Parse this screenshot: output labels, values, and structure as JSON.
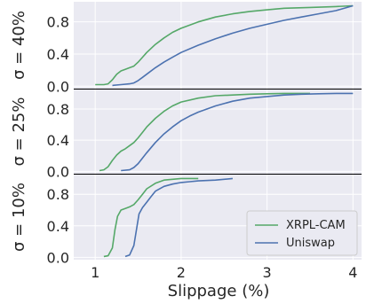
{
  "chart_data": {
    "type": "line",
    "xlabel": "Slippage (%)",
    "x_ticks": [
      "1",
      "2",
      "3",
      "4"
    ],
    "y_ticks": [
      "0.0",
      "0.4",
      "0.8"
    ],
    "xlim": [
      0.75,
      4.1
    ],
    "ylim": [
      -0.03,
      1.05
    ],
    "grid": true,
    "legend": {
      "placement": "lower-right",
      "panel": 3
    },
    "colors": {
      "xrpl": "#55a868",
      "uniswap": "#4c72b0",
      "panel_bg": "#eaeaf2",
      "grid": "#ffffff"
    },
    "panels": [
      {
        "ylabel": "σ = 40%",
        "series": [
          {
            "name": "XRPL-CAM",
            "x": [
              1.0,
              1.1,
              1.15,
              1.2,
              1.25,
              1.3,
              1.35,
              1.4,
              1.45,
              1.5,
              1.55,
              1.6,
              1.7,
              1.8,
              1.9,
              2.0,
              2.2,
              2.4,
              2.6,
              2.8,
              3.0,
              3.2,
              3.5,
              3.8,
              4.0
            ],
            "y": [
              0.02,
              0.02,
              0.03,
              0.08,
              0.15,
              0.19,
              0.21,
              0.23,
              0.25,
              0.3,
              0.36,
              0.42,
              0.52,
              0.6,
              0.67,
              0.72,
              0.8,
              0.86,
              0.9,
              0.93,
              0.95,
              0.97,
              0.98,
              0.99,
              1.0
            ]
          },
          {
            "name": "Uniswap",
            "x": [
              1.2,
              1.3,
              1.4,
              1.45,
              1.5,
              1.55,
              1.6,
              1.7,
              1.8,
              1.9,
              2.0,
              2.2,
              2.4,
              2.6,
              2.8,
              3.0,
              3.2,
              3.4,
              3.6,
              3.8,
              4.0
            ],
            "y": [
              0.01,
              0.02,
              0.03,
              0.04,
              0.07,
              0.11,
              0.15,
              0.23,
              0.3,
              0.36,
              0.42,
              0.51,
              0.59,
              0.66,
              0.72,
              0.77,
              0.82,
              0.86,
              0.9,
              0.94,
              1.0
            ]
          }
        ]
      },
      {
        "ylabel": "σ = 25%",
        "series": [
          {
            "name": "XRPL-CAM",
            "x": [
              1.05,
              1.1,
              1.15,
              1.2,
              1.25,
              1.3,
              1.35,
              1.4,
              1.45,
              1.5,
              1.55,
              1.6,
              1.7,
              1.8,
              1.9,
              2.0,
              2.2,
              2.4,
              2.6,
              2.8,
              3.0,
              3.2,
              3.5
            ],
            "y": [
              0.01,
              0.02,
              0.06,
              0.14,
              0.21,
              0.26,
              0.29,
              0.33,
              0.37,
              0.43,
              0.5,
              0.57,
              0.68,
              0.77,
              0.84,
              0.89,
              0.94,
              0.97,
              0.98,
              0.99,
              0.995,
              1.0,
              1.0
            ]
          },
          {
            "name": "Uniswap",
            "x": [
              1.3,
              1.4,
              1.45,
              1.5,
              1.55,
              1.6,
              1.7,
              1.8,
              1.9,
              2.0,
              2.1,
              2.2,
              2.4,
              2.6,
              2.8,
              3.0,
              3.2,
              3.4,
              3.6,
              3.8,
              4.0
            ],
            "y": [
              0.01,
              0.02,
              0.05,
              0.1,
              0.17,
              0.24,
              0.37,
              0.48,
              0.57,
              0.65,
              0.71,
              0.76,
              0.84,
              0.9,
              0.94,
              0.96,
              0.98,
              0.99,
              0.995,
              1.0,
              1.0
            ]
          }
        ]
      },
      {
        "ylabel": "σ = 10%",
        "series": [
          {
            "name": "XRPL-CAM",
            "x": [
              1.1,
              1.15,
              1.2,
              1.23,
              1.26,
              1.3,
              1.35,
              1.4,
              1.45,
              1.5,
              1.55,
              1.6,
              1.7,
              1.8,
              1.9,
              2.0,
              2.1,
              2.2
            ],
            "y": [
              0.01,
              0.02,
              0.12,
              0.35,
              0.52,
              0.6,
              0.62,
              0.64,
              0.67,
              0.73,
              0.8,
              0.87,
              0.94,
              0.98,
              0.99,
              1.0,
              1.0,
              1.0
            ]
          },
          {
            "name": "Uniswap",
            "x": [
              1.35,
              1.4,
              1.45,
              1.48,
              1.51,
              1.55,
              1.6,
              1.65,
              1.7,
              1.8,
              1.9,
              2.0,
              2.1,
              2.2,
              2.4,
              2.6
            ],
            "y": [
              0.01,
              0.03,
              0.15,
              0.35,
              0.55,
              0.63,
              0.7,
              0.77,
              0.84,
              0.9,
              0.93,
              0.95,
              0.96,
              0.97,
              0.98,
              1.0
            ]
          }
        ]
      }
    ]
  }
}
